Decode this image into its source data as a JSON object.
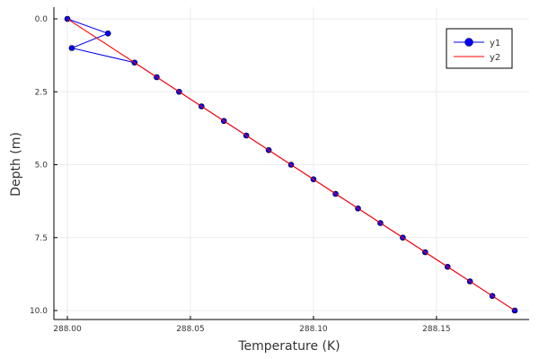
{
  "chart_data": {
    "type": "line",
    "title": "",
    "xlabel": "Temperature (K)",
    "ylabel": "Depth (m)",
    "xlim": [
      288.0,
      288.183
    ],
    "ylim": [
      0,
      10
    ],
    "y_inverted": true,
    "grid": true,
    "legend_position": "top-right",
    "x_ticks": [
      {
        "value": 288.0,
        "label": "288.00"
      },
      {
        "value": 288.05,
        "label": "288.05"
      },
      {
        "value": 288.1,
        "label": "288.10"
      },
      {
        "value": 288.15,
        "label": "288.15"
      }
    ],
    "y_ticks": [
      {
        "value": 0,
        "label": "0.0"
      },
      {
        "value": 2.5,
        "label": "2.5"
      },
      {
        "value": 5,
        "label": "5.0"
      },
      {
        "value": 7.5,
        "label": "7.5"
      },
      {
        "value": 10,
        "label": "10.0"
      }
    ],
    "series": [
      {
        "name": "y1",
        "color": "#0000ff",
        "marker": "circle",
        "x": [
          288.0,
          288.0165,
          288.0018,
          288.0273,
          288.0363,
          288.0454,
          288.0545,
          288.0636,
          288.0727,
          288.0818,
          288.0909,
          288.1,
          288.109,
          288.1181,
          288.1272,
          288.1363,
          288.1454,
          288.1545,
          288.1636,
          288.1727,
          288.1818
        ],
        "y": [
          0.0,
          0.5,
          1.0,
          1.5,
          2.0,
          2.5,
          3.0,
          3.5,
          4.0,
          4.5,
          5.0,
          5.5,
          6.0,
          6.5,
          7.0,
          7.5,
          8.0,
          8.5,
          9.0,
          9.5,
          10.0
        ]
      },
      {
        "name": "y2",
        "color": "#ff0000",
        "marker": "none",
        "x": [
          288.0,
          288.1818
        ],
        "y": [
          0.0,
          10.0
        ]
      }
    ]
  }
}
